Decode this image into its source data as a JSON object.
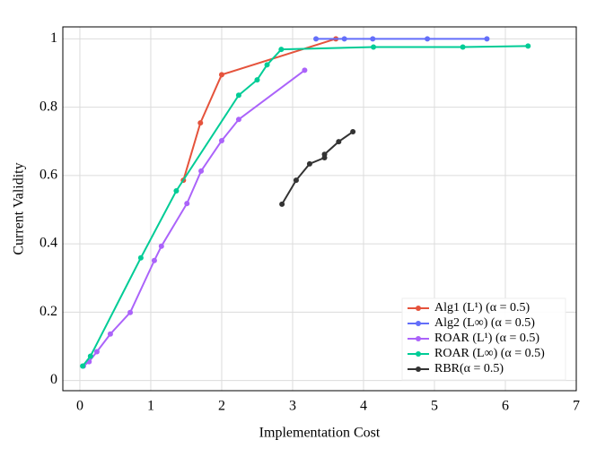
{
  "chart_data": {
    "type": "line",
    "x_label": "Implementation Cost",
    "y_label": "Current Validity",
    "xlim": [
      -0.24,
      7.0
    ],
    "ylim": [
      -0.03,
      1.035
    ],
    "xticks": [
      0,
      1,
      2,
      3,
      4,
      5,
      6,
      7
    ],
    "yticks": [
      0,
      0.2,
      0.4,
      0.6,
      0.8,
      1
    ],
    "grid": true,
    "legend_position": "lower-right",
    "series": [
      {
        "name": "Alg1 (L¹) (α = 0.5)",
        "color": "#e5533c",
        "x": [
          1.46,
          1.7,
          2.0,
          3.61
        ],
        "values": [
          0.586,
          0.754,
          0.895,
          1.0
        ]
      },
      {
        "name": "Alg2 (L∞) (α = 0.5)",
        "color": "#636efa",
        "x": [
          3.33,
          3.73,
          4.13,
          4.9,
          5.74
        ],
        "values": [
          1.0,
          1.0,
          1.0,
          1.0,
          1.0
        ]
      },
      {
        "name": "ROAR (L¹) (α = 0.5)",
        "color": "#ab63fa",
        "x": [
          0.05,
          0.13,
          0.24,
          0.43,
          0.71,
          1.05,
          1.15,
          1.51,
          1.71,
          2.0,
          2.24,
          3.17
        ],
        "values": [
          0.042,
          0.055,
          0.084,
          0.136,
          0.199,
          0.351,
          0.393,
          0.518,
          0.613,
          0.702,
          0.764,
          0.908
        ]
      },
      {
        "name": "ROAR (L∞) (α = 0.5)",
        "color": "#00cc96",
        "x": [
          0.04,
          0.15,
          0.86,
          1.36,
          2.24,
          2.5,
          2.64,
          2.84,
          4.14,
          5.4,
          6.32
        ],
        "values": [
          0.042,
          0.071,
          0.359,
          0.555,
          0.835,
          0.88,
          0.924,
          0.969,
          0.976,
          0.976,
          0.979
        ]
      },
      {
        "name": "RBR(α = 0.5)",
        "color": "#333333",
        "x": [
          2.85,
          3.05,
          3.24,
          3.45,
          3.45,
          3.65,
          3.85
        ],
        "values": [
          0.516,
          0.586,
          0.634,
          0.652,
          0.662,
          0.699,
          0.728
        ]
      }
    ]
  }
}
